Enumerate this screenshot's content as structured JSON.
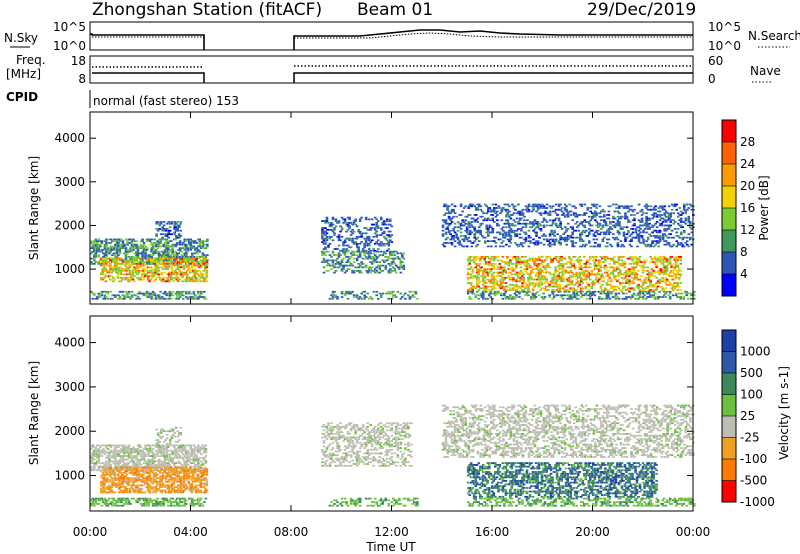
{
  "header": {
    "station": "Zhongshan Station (fitACF)",
    "beam": "Beam 01",
    "date": "29/Dec/2019"
  },
  "panels": {
    "nsky": {
      "label": "N.Sky",
      "ticks": [
        "10^5",
        "10^0"
      ],
      "right_label": "N.Search",
      "right_ticks": [
        "10^5",
        "10^0"
      ]
    },
    "freq": {
      "label_top": "Freq.",
      "label_bot": "[MHz]",
      "ticks": [
        "18",
        "8"
      ],
      "right_label": "Nave",
      "right_ticks": [
        "60",
        "0"
      ]
    },
    "cpid": {
      "label": "CPID",
      "text": "normal (fast stereo) 153"
    }
  },
  "chart_data": [
    {
      "type": "heatmap",
      "panel": "power",
      "ylabel": "Slant Range [km]",
      "yticks": [
        "4000",
        "3000",
        "2000",
        "1000"
      ],
      "ylim": [
        200,
        4600
      ],
      "colorbar_label": "Power [dB]",
      "colorbar_ticks": [
        "28",
        "24",
        "20",
        "16",
        "12",
        "8",
        "4"
      ],
      "colorbar_colors": [
        "#ff0000",
        "#ff6400",
        "#ff9a00",
        "#f2d200",
        "#7ccc30",
        "#3c9a5a",
        "#2b58b8",
        "#0000ff"
      ],
      "time_ranges_with_data": [
        [
          "00:00",
          "04:40"
        ],
        [
          "08:00",
          "24:00"
        ]
      ],
      "echo_bands_km": [
        [
          300,
          1700
        ],
        [
          900,
          2600
        ]
      ]
    },
    {
      "type": "heatmap",
      "panel": "velocity",
      "ylabel": "Slant Range [km]",
      "yticks": [
        "4000",
        "3000",
        "2000",
        "1000"
      ],
      "ylim": [
        200,
        4600
      ],
      "colorbar_label": "Velocity [m s-1]",
      "colorbar_ticks": [
        "1000",
        "500",
        "100",
        "25",
        "-25",
        "-100",
        "-500",
        "-1000"
      ],
      "colorbar_colors": [
        "#1e3ea8",
        "#2a5aa8",
        "#3a8a5a",
        "#6cc040",
        "#bdbdb2",
        "#f0a020",
        "#ff7a00",
        "#ff0000"
      ]
    }
  ],
  "xaxis": {
    "title": "Time UT",
    "ticks": [
      "00:00",
      "04:00",
      "08:00",
      "12:00",
      "16:00",
      "20:00",
      "00:00"
    ]
  }
}
